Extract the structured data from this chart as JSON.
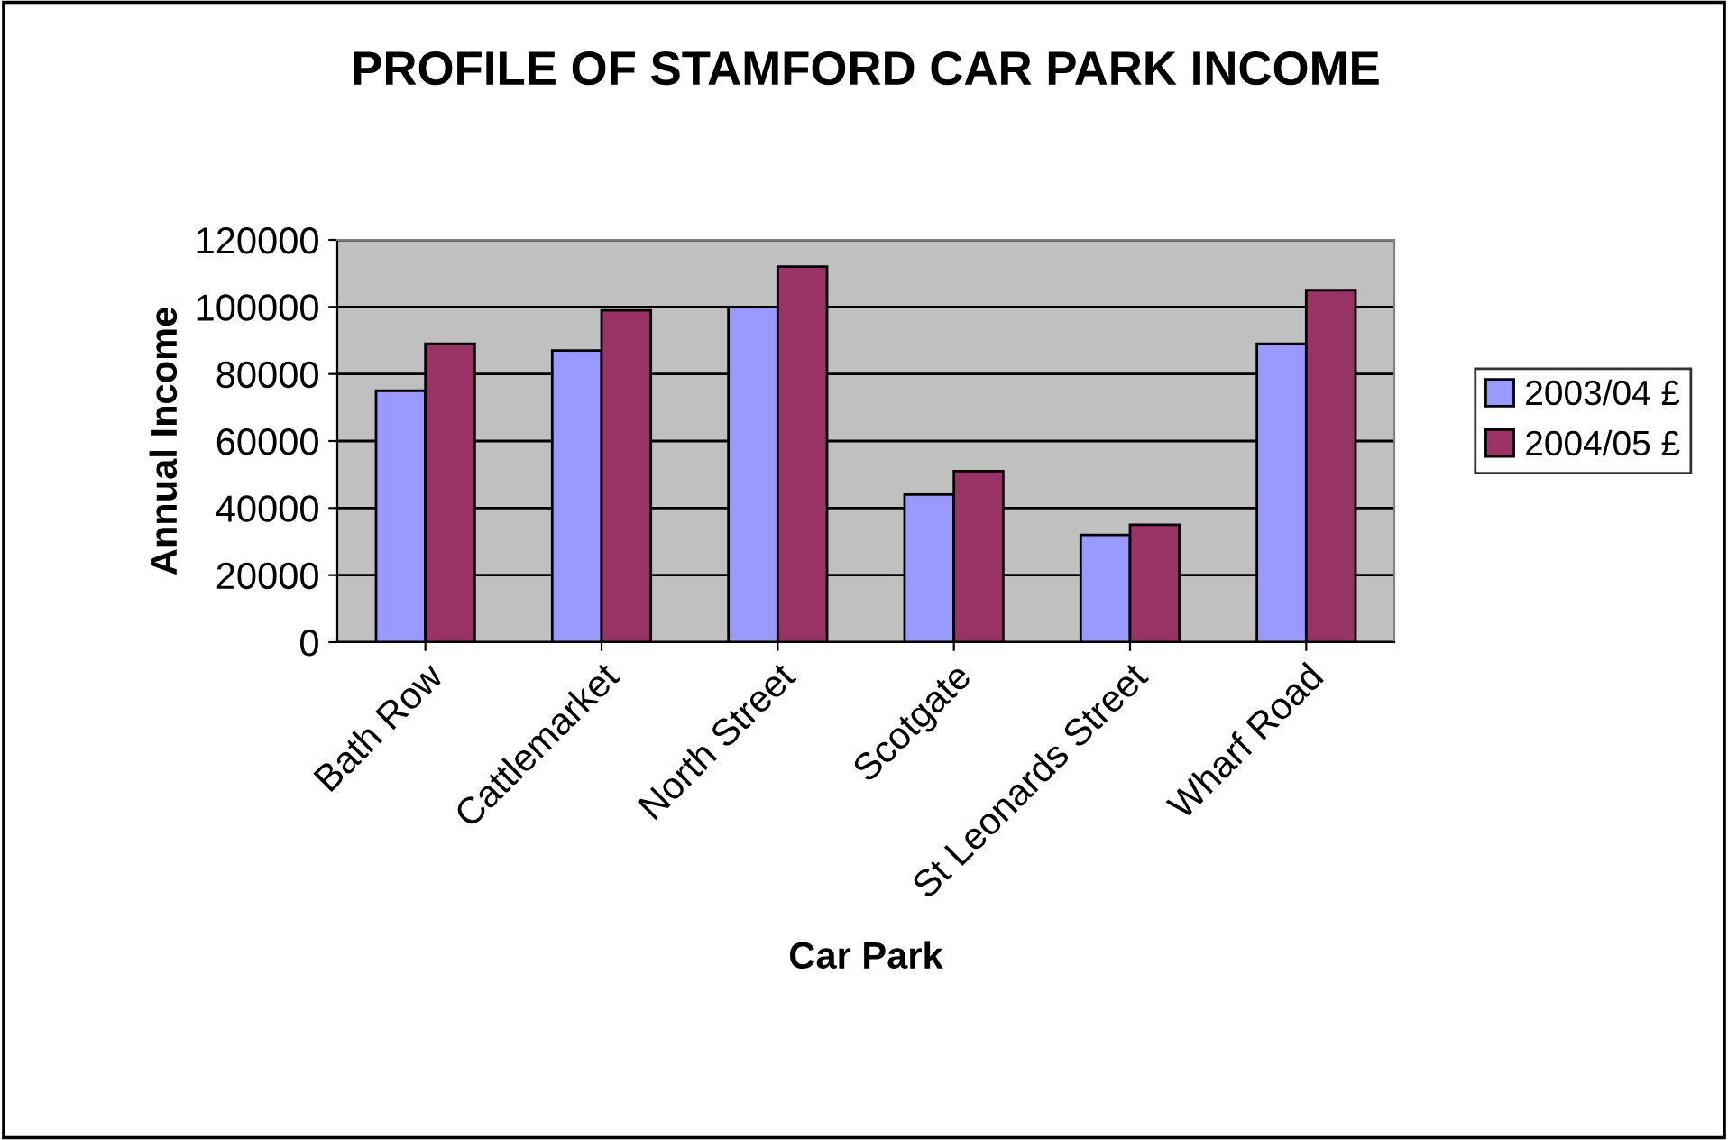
{
  "chart_data": {
    "type": "bar",
    "title": "PROFILE OF STAMFORD CAR PARK INCOME",
    "xlabel": "Car Park",
    "ylabel": "Annual Income",
    "categories": [
      "Bath Row",
      "Cattlemarket",
      "North Street",
      "Scotgate",
      "St Leonards Street",
      "Wharf Road"
    ],
    "series": [
      {
        "name": "2003/04 £",
        "color": "#9999ff",
        "values": [
          75000,
          87000,
          100000,
          44000,
          32000,
          89000
        ]
      },
      {
        "name": "2004/05 £",
        "color": "#993366",
        "values": [
          89000,
          99000,
          112000,
          51000,
          35000,
          105000
        ]
      }
    ],
    "ylim": [
      0,
      120000
    ],
    "yticks": [
      0,
      20000,
      40000,
      60000,
      80000,
      100000,
      120000
    ],
    "grid": "y",
    "legend": "right"
  }
}
